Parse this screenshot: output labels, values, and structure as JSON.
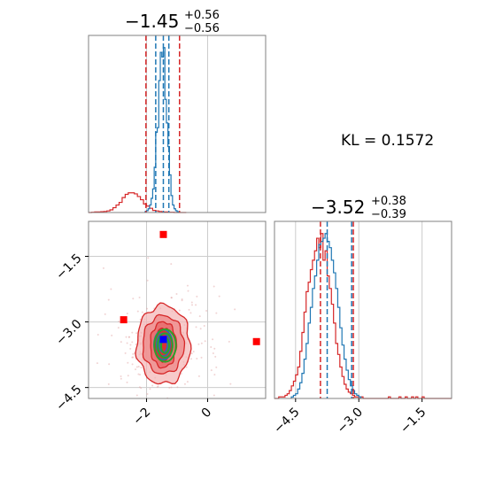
{
  "chart_data": {
    "type": "corner",
    "kl_annotation": "KL = 0.1572",
    "colors": {
      "blue": "#1f77b4",
      "red": "#d62728",
      "green": "#2ca02c",
      "marker_red": "#ff0000",
      "marker_blue": "#0000ff",
      "grid": "#cccccc",
      "axis": "#808080"
    },
    "param1": {
      "title_main": "−1.45",
      "title_sup": "+0.56",
      "title_sub": "−0.56",
      "xlim": [
        -3.9,
        1.9
      ],
      "xticks": [
        -2,
        0
      ],
      "xtick_labels": [
        "−2",
        "0"
      ],
      "blue_quantile_lines": [
        -1.7,
        -1.45,
        -1.27
      ],
      "red_quantile_lines": [
        -2.02,
        -0.92
      ],
      "blue_hist": {
        "start": -2.05,
        "step": 0.05,
        "counts": [
          1,
          2,
          4,
          8,
          15,
          25,
          48,
          85,
          90,
          140,
          170,
          165,
          175,
          120,
          95,
          70,
          40,
          18,
          8,
          4,
          2,
          1
        ]
      },
      "red_hist": {
        "start": -3.9,
        "step": 0.1,
        "counts": [
          0,
          0.5,
          1,
          1,
          1.5,
          2,
          3,
          5,
          9,
          14,
          19,
          28,
          34,
          37,
          37,
          35,
          30,
          24,
          16,
          12,
          8,
          4,
          3,
          2,
          1,
          1,
          0.5,
          0.5,
          0,
          0,
          0,
          0
        ]
      }
    },
    "param2": {
      "title_main": "−3.52",
      "title_sup": "+0.38",
      "title_sub": "−0.39",
      "xlim": [
        -5.0,
        -0.8
      ],
      "xticks": [
        -4.5,
        -3.0,
        -1.5
      ],
      "xtick_labels": [
        "−4.5",
        "−3.0",
        "−1.5"
      ],
      "blue_quantile_lines": [
        -3.75,
        -3.17
      ],
      "red_quantile_lines": [
        -3.91,
        -3.13
      ],
      "blue_hist": {
        "start": -4.6,
        "step": 0.05,
        "counts": [
          1,
          2,
          3,
          6,
          10,
          16,
          25,
          35,
          48,
          58,
          70,
          78,
          88,
          98,
          100,
          102,
          105,
          100,
          96,
          88,
          80,
          70,
          58,
          45,
          34,
          25,
          18,
          12,
          8,
          5,
          3,
          2,
          1
        ]
      },
      "red_hist": {
        "start": -5.0,
        "step": 0.05,
        "counts": [
          0,
          0,
          1,
          1,
          1,
          2,
          3,
          5,
          8,
          11,
          15,
          20,
          30,
          42,
          55,
          68,
          74,
          82,
          88,
          94,
          102,
          96,
          105,
          88,
          94,
          78,
          70,
          60,
          48,
          35,
          28,
          20,
          14,
          9,
          6,
          4,
          3,
          2,
          1,
          1,
          0,
          1,
          0,
          0,
          0,
          0,
          0,
          0,
          0,
          0,
          0,
          0,
          0,
          0,
          1,
          0,
          0,
          0,
          0,
          1,
          0,
          0,
          1,
          0,
          0,
          1,
          0,
          1,
          0,
          0,
          1,
          0,
          0,
          0,
          0,
          0,
          0,
          0,
          0,
          0,
          0,
          0,
          0,
          0
        ]
      }
    },
    "joint": {
      "ylim": [
        -4.75,
        -0.7
      ],
      "yticks": [
        -4.5,
        -3.0,
        -1.5
      ],
      "ytick_labels": [
        "−4.5",
        "−3.0",
        "−1.5"
      ],
      "center": [
        -1.45,
        -3.52
      ],
      "red_square_markers": [
        [
          -1.45,
          -1.0
        ],
        [
          -2.75,
          -2.95
        ],
        [
          1.6,
          -3.45
        ]
      ],
      "blue_square_marker": [
        -1.45,
        -3.4
      ],
      "blue_ellipses_sigma": [
        [
          0.28,
          0.55
        ],
        [
          0.2,
          0.42
        ],
        [
          0.12,
          0.28
        ]
      ],
      "green_ellipses_sigma": [
        [
          0.32,
          0.6
        ],
        [
          0.22,
          0.45
        ],
        [
          0.12,
          0.28
        ]
      ],
      "red_contour_sigma": [
        [
          1.75,
          0.95
        ],
        [
          1.35,
          0.7
        ],
        [
          0.85,
          0.55
        ],
        [
          0.55,
          0.4
        ]
      ]
    }
  }
}
